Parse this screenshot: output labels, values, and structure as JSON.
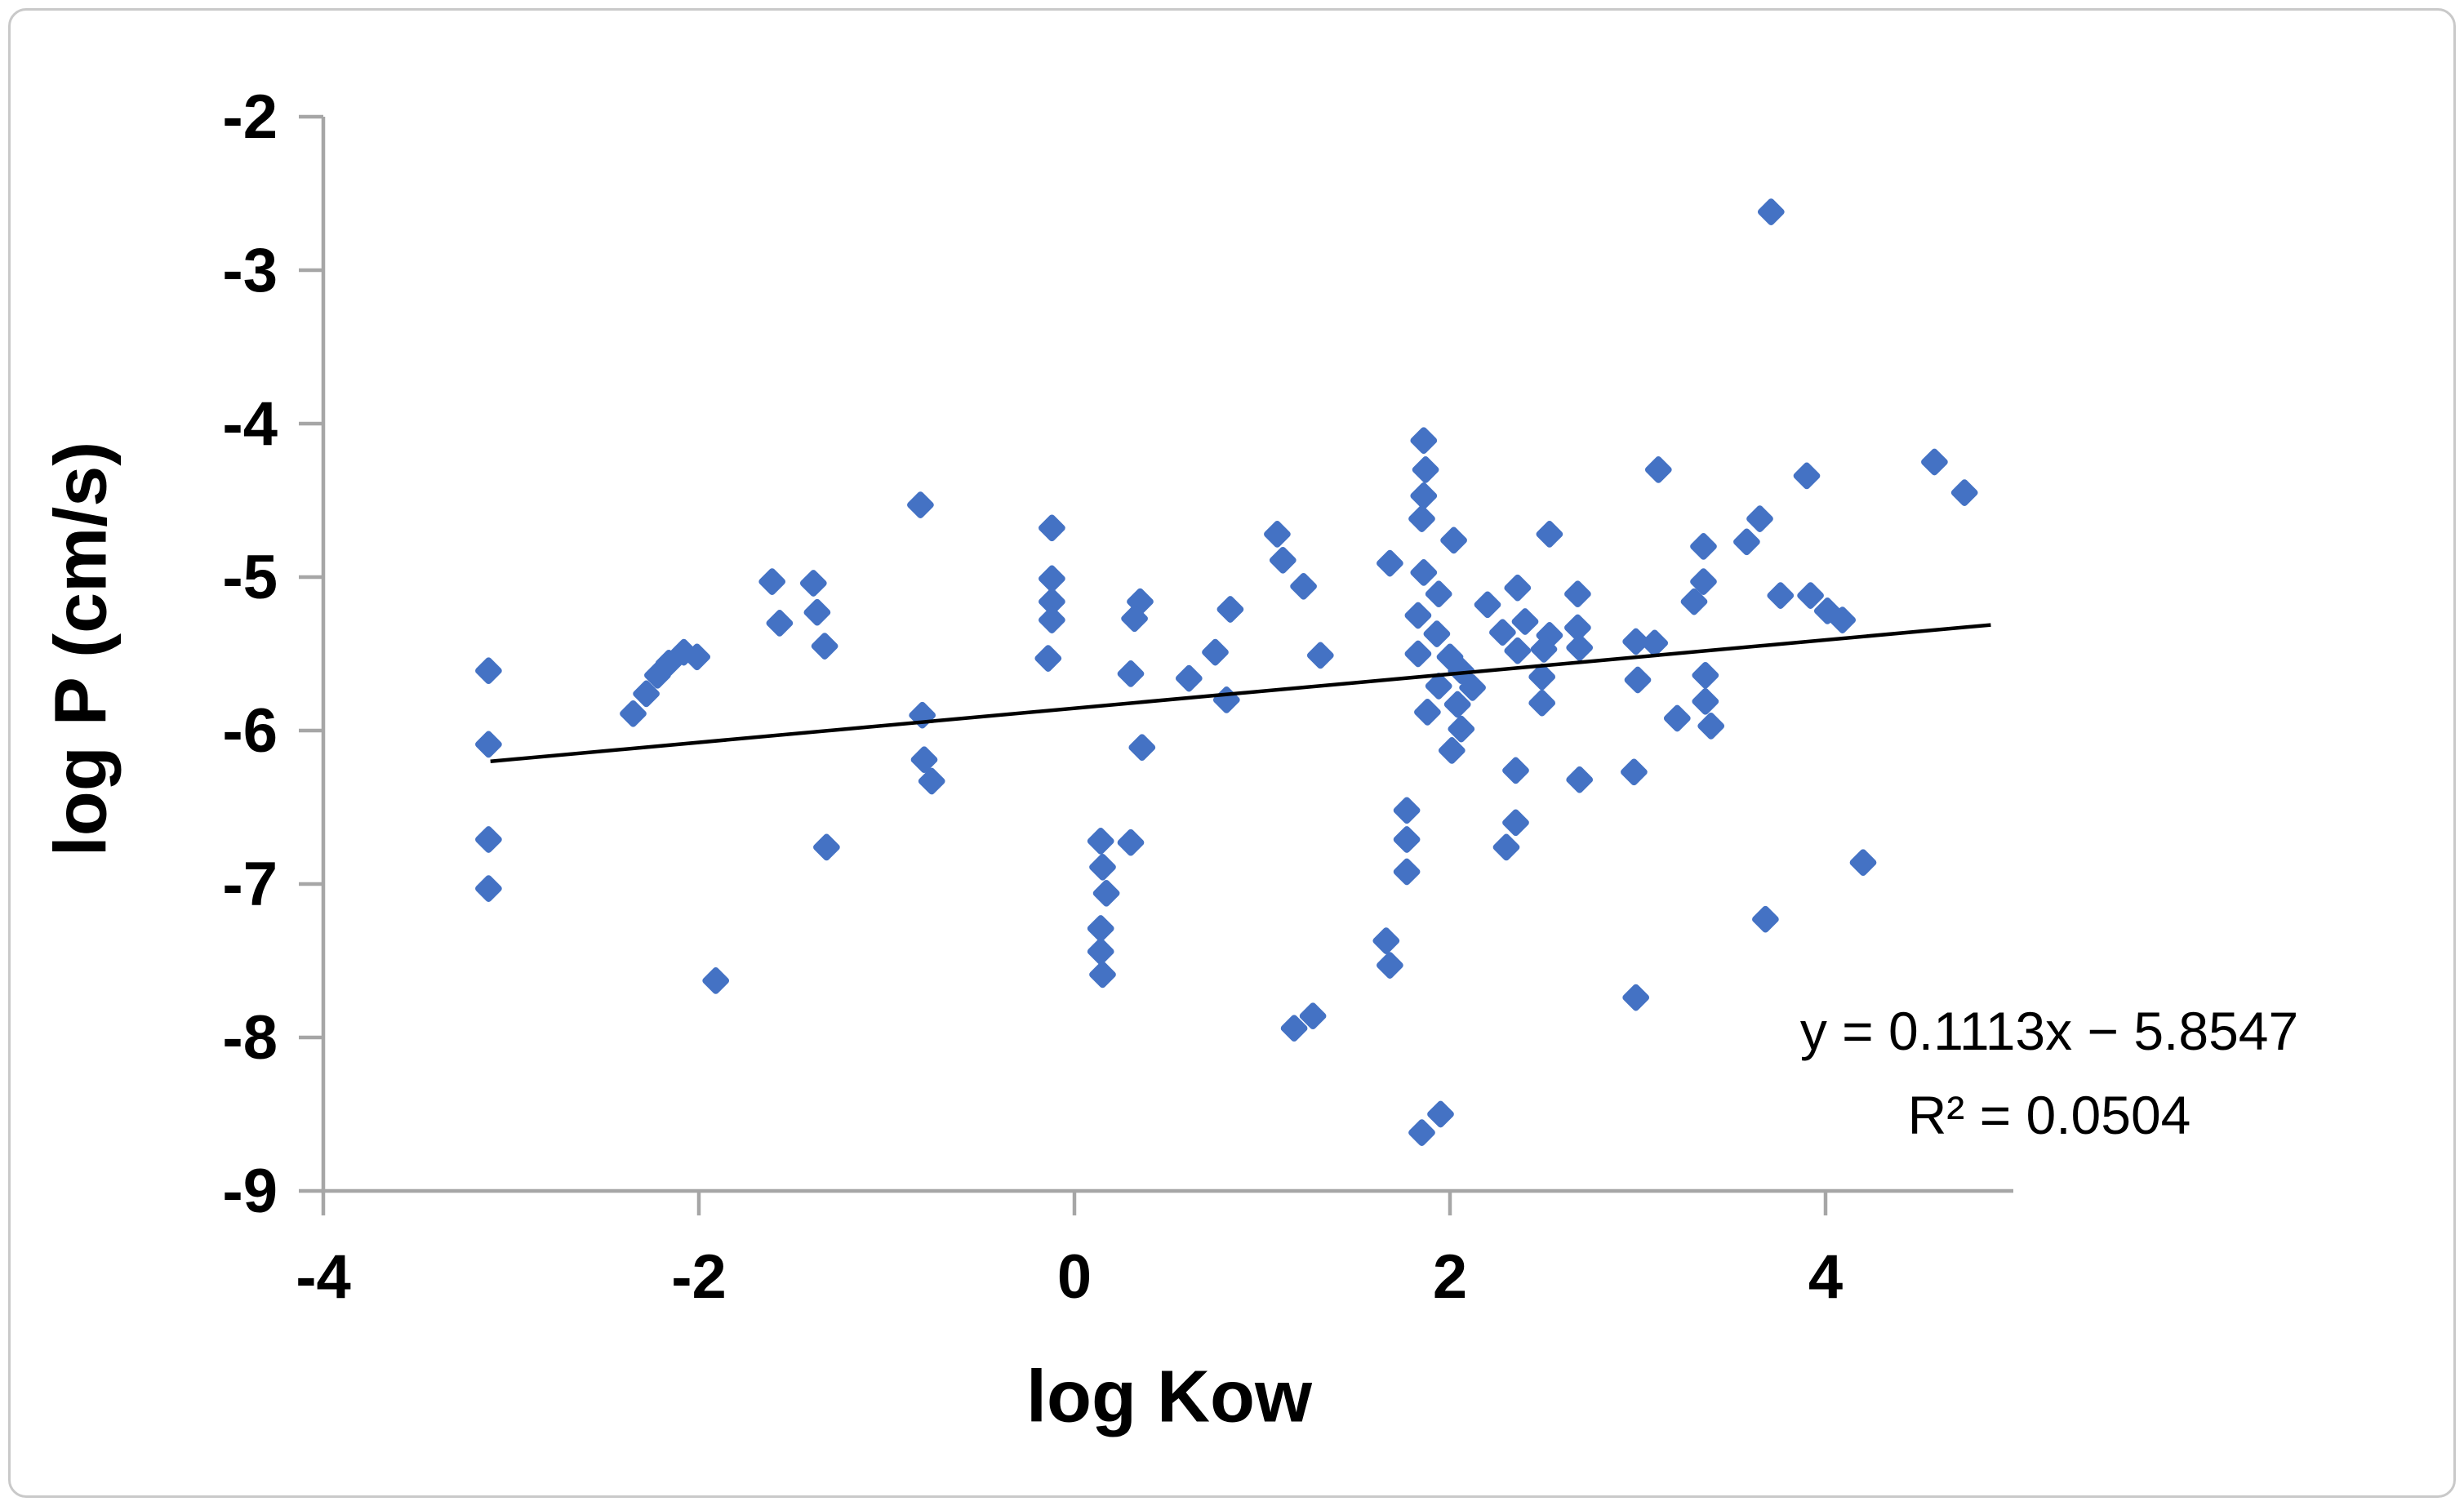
{
  "chart_data": {
    "type": "scatter",
    "title": "",
    "xlabel": "log Kow",
    "ylabel": "log P (cm/s)",
    "xlim": [
      -4,
      5
    ],
    "ylim": [
      -9,
      -2
    ],
    "x_ticks": [
      -4,
      -2,
      0,
      2,
      4
    ],
    "y_ticks": [
      -2,
      -3,
      -4,
      -5,
      -6,
      -7,
      -8,
      -9
    ],
    "grid": false,
    "legend": false,
    "axis_color": "#a6a6a6",
    "marker": {
      "shape": "diamond",
      "color": "#4472C4",
      "size": 36
    },
    "trendline": {
      "slope": 0.1113,
      "intercept": -5.8547,
      "x_start": -3.11,
      "x_end": 4.88,
      "color": "#000000",
      "width": 4.5
    },
    "equation_label": "y = 0.1113x − 5.8547",
    "r_squared_label": "R² = 0.0504",
    "r_squared_value": 0.0504,
    "layout": {
      "plot_left": 396,
      "plot_right": 2466,
      "plot_top": 143,
      "plot_bottom": 1459,
      "tick_len": 30,
      "axis_width": 4.5
    },
    "points": [
      [
        -3.12,
        -5.61
      ],
      [
        -3.12,
        -6.09
      ],
      [
        -3.12,
        -6.71
      ],
      [
        -3.12,
        -7.03
      ],
      [
        -2.35,
        -5.89
      ],
      [
        -2.28,
        -5.76
      ],
      [
        -2.22,
        -5.64
      ],
      [
        -2.16,
        -5.56
      ],
      [
        -2.08,
        -5.49
      ],
      [
        -2.01,
        -5.52
      ],
      [
        -1.91,
        -7.63
      ],
      [
        -1.61,
        -5.03
      ],
      [
        -1.39,
        -5.04
      ],
      [
        -1.57,
        -5.3
      ],
      [
        -1.37,
        -5.23
      ],
      [
        -1.33,
        -5.45
      ],
      [
        -1.32,
        -6.76
      ],
      [
        -0.82,
        -4.53
      ],
      [
        -0.81,
        -5.9
      ],
      [
        -0.8,
        -6.19
      ],
      [
        -0.76,
        -6.33
      ],
      [
        -0.12,
        -4.68
      ],
      [
        -0.12,
        -5.01
      ],
      [
        -0.12,
        -5.16
      ],
      [
        -0.12,
        -5.28
      ],
      [
        -0.14,
        -5.53
      ],
      [
        0.14,
        -6.72
      ],
      [
        0.3,
        -6.73
      ],
      [
        0.15,
        -6.89
      ],
      [
        0.17,
        -7.06
      ],
      [
        0.14,
        -7.29
      ],
      [
        0.14,
        -7.44
      ],
      [
        0.15,
        -7.59
      ],
      [
        0.35,
        -5.16
      ],
      [
        0.32,
        -5.27
      ],
      [
        0.83,
        -5.21
      ],
      [
        0.75,
        -5.49
      ],
      [
        0.3,
        -5.63
      ],
      [
        0.61,
        -5.66
      ],
      [
        0.81,
        -5.8
      ],
      [
        0.36,
        -6.11
      ],
      [
        1.08,
        -4.72
      ],
      [
        1.11,
        -4.89
      ],
      [
        1.22,
        -5.06
      ],
      [
        1.31,
        -5.51
      ],
      [
        1.17,
        -7.94
      ],
      [
        1.27,
        -7.86
      ],
      [
        1.66,
        -7.37
      ],
      [
        1.68,
        -7.53
      ],
      [
        1.77,
        -6.52
      ],
      [
        1.77,
        -6.71
      ],
      [
        1.77,
        -6.92
      ],
      [
        1.86,
        -4.11
      ],
      [
        1.87,
        -4.3
      ],
      [
        1.86,
        -4.47
      ],
      [
        1.85,
        -4.62
      ],
      [
        2.02,
        -4.76
      ],
      [
        1.68,
        -4.91
      ],
      [
        1.86,
        -4.97
      ],
      [
        1.94,
        -5.11
      ],
      [
        1.83,
        -5.25
      ],
      [
        1.93,
        -5.37
      ],
      [
        1.83,
        -5.5
      ],
      [
        2.0,
        -5.52
      ],
      [
        2.06,
        -5.61
      ],
      [
        1.94,
        -5.71
      ],
      [
        2.04,
        -5.83
      ],
      [
        1.88,
        -5.88
      ],
      [
        2.06,
        -5.99
      ],
      [
        2.01,
        -6.13
      ],
      [
        2.12,
        -5.72
      ],
      [
        1.95,
        -8.5
      ],
      [
        1.85,
        -8.62
      ],
      [
        2.53,
        -4.72
      ],
      [
        2.36,
        -5.07
      ],
      [
        2.2,
        -5.18
      ],
      [
        2.68,
        -5.11
      ],
      [
        2.4,
        -5.29
      ],
      [
        2.28,
        -5.36
      ],
      [
        2.68,
        -5.33
      ],
      [
        2.53,
        -5.38
      ],
      [
        2.36,
        -5.48
      ],
      [
        2.5,
        -5.47
      ],
      [
        2.49,
        -5.65
      ],
      [
        2.49,
        -5.82
      ],
      [
        2.69,
        -5.46
      ],
      [
        2.35,
        -6.26
      ],
      [
        2.69,
        -6.32
      ],
      [
        2.35,
        -6.6
      ],
      [
        2.3,
        -6.76
      ],
      [
        2.99,
        -5.42
      ],
      [
        3.09,
        -5.43
      ],
      [
        3.0,
        -5.67
      ],
      [
        2.98,
        -6.27
      ],
      [
        2.99,
        -7.74
      ],
      [
        3.11,
        -4.3
      ],
      [
        3.35,
        -4.8
      ],
      [
        3.35,
        -5.03
      ],
      [
        3.3,
        -5.16
      ],
      [
        3.36,
        -5.64
      ],
      [
        3.36,
        -5.81
      ],
      [
        3.21,
        -5.92
      ],
      [
        3.39,
        -5.97
      ],
      [
        3.65,
        -4.62
      ],
      [
        3.58,
        -4.77
      ],
      [
        3.76,
        -5.12
      ],
      [
        3.68,
        -7.23
      ],
      [
        3.71,
        -2.62
      ],
      [
        3.9,
        -4.34
      ],
      [
        3.92,
        -5.12
      ],
      [
        4.01,
        -5.22
      ],
      [
        4.09,
        -5.28
      ],
      [
        4.2,
        -6.86
      ],
      [
        4.58,
        -4.25
      ],
      [
        4.74,
        -4.45
      ]
    ]
  }
}
